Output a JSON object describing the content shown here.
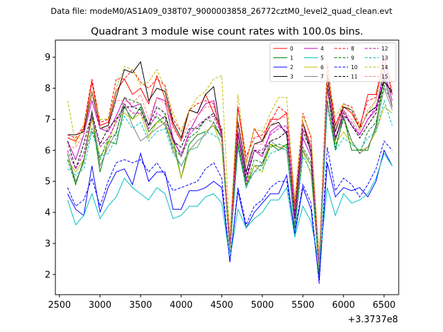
{
  "chart_data": {
    "type": "line",
    "suptitle": "Data file: modeM0/AS1A09_038T07_9000003858_26772cztM0_level2_quad_clean.evt",
    "title": "Quadrant 3 module wise count rates with 100.0s bins.",
    "xlabel": "",
    "ylabel": "",
    "x_offset_label": "+3.3737e8",
    "xlim": [
      2450,
      6680
    ],
    "ylim": [
      1.35,
      9.55
    ],
    "xticks": [
      2500,
      3000,
      3500,
      4000,
      4500,
      5000,
      5500,
      6000,
      6500
    ],
    "yticks": [
      2,
      3,
      4,
      5,
      6,
      7,
      8,
      9
    ],
    "grid": false,
    "legend": {
      "position": "top-right",
      "columns": 4
    },
    "x": [
      2600,
      2700,
      2800,
      2900,
      3000,
      3100,
      3200,
      3300,
      3400,
      3500,
      3600,
      3700,
      3800,
      3900,
      4000,
      4100,
      4200,
      4300,
      4400,
      4500,
      4600,
      4700,
      4800,
      4900,
      5000,
      5100,
      5200,
      5300,
      5400,
      5500,
      5600,
      5700,
      5800,
      5900,
      6000,
      6100,
      6200,
      6300,
      6400,
      6500,
      6600
    ],
    "series": [
      {
        "name": "0",
        "color": "#ff0000",
        "dash": false,
        "values": [
          6.4,
          6.3,
          6.7,
          8.2,
          6.8,
          6.9,
          7.9,
          8.3,
          7.8,
          8.0,
          7.5,
          8.4,
          7.7,
          6.8,
          6.3,
          7.3,
          7.2,
          7.8,
          7.2,
          6.6,
          3.0,
          7.4,
          5.6,
          6.7,
          6.3,
          7.0,
          7.0,
          7.2,
          4.2,
          6.9,
          6.1,
          2.2,
          8.5,
          6.8,
          7.4,
          7.2,
          6.7,
          7.8,
          7.8,
          9.0,
          7.8
        ]
      },
      {
        "name": "1",
        "color": "#008000",
        "dash": false,
        "values": [
          5.9,
          4.9,
          5.7,
          7.1,
          5.3,
          6.3,
          6.2,
          7.4,
          7.0,
          7.4,
          6.6,
          6.9,
          7.1,
          6.4,
          5.1,
          6.2,
          6.5,
          6.6,
          6.8,
          6.4,
          2.7,
          6.1,
          4.8,
          5.5,
          5.5,
          6.2,
          6.0,
          6.2,
          3.5,
          6.0,
          5.5,
          2.0,
          7.6,
          6.0,
          7.1,
          6.0,
          6.0,
          6.0,
          6.8,
          8.4,
          7.4
        ]
      },
      {
        "name": "2",
        "color": "#0000ff",
        "dash": false,
        "values": [
          4.6,
          4.1,
          3.9,
          5.5,
          4.0,
          4.8,
          5.3,
          5.4,
          4.9,
          5.9,
          5.0,
          5.3,
          5.3,
          4.1,
          4.1,
          4.7,
          4.7,
          4.8,
          5.0,
          4.8,
          2.4,
          4.7,
          3.5,
          4.0,
          4.3,
          4.6,
          4.6,
          5.2,
          3.3,
          4.8,
          4.1,
          1.8,
          5.6,
          4.5,
          4.8,
          4.7,
          4.8,
          4.5,
          5.0,
          6.0,
          5.5
        ]
      },
      {
        "name": "3",
        "color": "#000000",
        "dash": false,
        "values": [
          6.5,
          6.5,
          6.6,
          7.9,
          6.7,
          6.8,
          7.7,
          8.6,
          8.5,
          8.85,
          7.6,
          8.0,
          7.9,
          6.9,
          6.4,
          7.3,
          7.2,
          7.8,
          8.05,
          6.4,
          2.9,
          6.9,
          5.3,
          6.2,
          6.3,
          6.8,
          6.9,
          6.5,
          4.0,
          6.9,
          5.9,
          2.4,
          8.4,
          6.6,
          7.4,
          7.3,
          6.7,
          7.2,
          7.4,
          8.2,
          7.9
        ]
      },
      {
        "name": "4",
        "color": "#bf00bf",
        "dash": false,
        "values": [
          6.3,
          5.7,
          6.5,
          7.6,
          6.7,
          6.6,
          7.1,
          7.7,
          7.4,
          7.5,
          6.8,
          7.7,
          7.6,
          6.4,
          5.8,
          6.6,
          7.1,
          7.5,
          7.6,
          6.4,
          2.7,
          6.5,
          5.0,
          6.0,
          5.8,
          6.6,
          6.8,
          6.6,
          3.8,
          6.4,
          5.8,
          2.2,
          8.0,
          6.3,
          7.3,
          6.8,
          6.5,
          7.0,
          7.3,
          8.6,
          7.6
        ]
      },
      {
        "name": "5",
        "color": "#00bfbf",
        "dash": false,
        "values": [
          4.4,
          3.6,
          3.9,
          4.6,
          3.8,
          4.2,
          4.5,
          5.1,
          4.8,
          4.6,
          4.4,
          4.8,
          4.6,
          3.8,
          3.9,
          4.2,
          4.2,
          4.5,
          4.6,
          4.3,
          2.5,
          4.1,
          3.5,
          3.8,
          4.0,
          4.4,
          4.4,
          4.8,
          3.2,
          4.2,
          3.7,
          2.3,
          4.8,
          3.9,
          4.6,
          4.3,
          4.4,
          4.6,
          5.1,
          5.9,
          5.5
        ]
      },
      {
        "name": "6",
        "color": "#bfbf00",
        "dash": false,
        "values": [
          5.7,
          5.3,
          5.7,
          7.0,
          5.8,
          6.2,
          7.0,
          7.2,
          7.0,
          7.2,
          6.4,
          6.9,
          6.9,
          6.2,
          5.1,
          6.0,
          6.1,
          6.6,
          6.8,
          6.1,
          2.7,
          6.2,
          4.9,
          5.5,
          5.3,
          6.2,
          6.1,
          6.1,
          3.5,
          6.0,
          5.2,
          2.2,
          7.5,
          6.2,
          6.6,
          6.2,
          6.0,
          6.1,
          6.6,
          7.4,
          7.2
        ]
      },
      {
        "name": "7",
        "color": "#808080",
        "dash": false,
        "values": [
          5.9,
          5.0,
          5.6,
          7.3,
          5.5,
          6.1,
          6.6,
          7.5,
          6.8,
          6.3,
          6.5,
          6.7,
          6.9,
          6.0,
          5.5,
          6.0,
          6.3,
          6.5,
          6.9,
          6.4,
          2.8,
          6.3,
          4.9,
          5.3,
          5.6,
          6.3,
          6.1,
          6.0,
          3.6,
          6.0,
          5.5,
          2.1,
          7.5,
          6.3,
          7.1,
          6.3,
          5.9,
          6.1,
          6.7,
          8.0,
          7.3
        ]
      },
      {
        "name": "8",
        "color": "#ff0000",
        "dash": true,
        "values": [
          6.5,
          6.4,
          6.8,
          8.3,
          6.9,
          7.0,
          8.3,
          8.3,
          8.6,
          8.2,
          8.0,
          8.3,
          8.1,
          7.0,
          6.6,
          7.3,
          7.5,
          7.6,
          7.5,
          6.5,
          3.0,
          7.4,
          5.8,
          6.4,
          6.5,
          6.9,
          7.4,
          7.2,
          4.3,
          7.2,
          6.4,
          2.4,
          8.8,
          6.8,
          7.5,
          7.4,
          6.8,
          7.6,
          7.7,
          8.8,
          8.2
        ]
      },
      {
        "name": "9",
        "color": "#008000",
        "dash": true,
        "values": [
          5.7,
          4.9,
          5.7,
          6.7,
          5.7,
          6.4,
          6.5,
          7.7,
          7.6,
          7.5,
          6.8,
          7.1,
          6.8,
          6.1,
          5.8,
          6.4,
          6.6,
          7.0,
          6.9,
          6.4,
          2.7,
          6.2,
          4.9,
          5.7,
          5.6,
          6.1,
          6.2,
          6.1,
          3.5,
          6.1,
          5.6,
          2.1,
          8.0,
          6.1,
          7.0,
          6.3,
          5.9,
          6.6,
          6.9,
          8.1,
          7.5
        ]
      },
      {
        "name": "10",
        "color": "#0000ff",
        "dash": true,
        "values": [
          4.8,
          4.2,
          4.4,
          5.1,
          4.2,
          5.0,
          5.6,
          5.7,
          5.6,
          5.7,
          5.3,
          5.6,
          5.2,
          4.7,
          4.8,
          4.9,
          5.0,
          5.4,
          5.6,
          5.1,
          2.4,
          4.8,
          3.6,
          4.2,
          4.4,
          4.8,
          5.0,
          5.0,
          3.4,
          4.9,
          4.3,
          1.7,
          6.1,
          4.7,
          5.1,
          4.9,
          4.5,
          4.9,
          5.4,
          6.3,
          6.0
        ]
      },
      {
        "name": "11",
        "color": "#000000",
        "dash": true,
        "values": [
          6.3,
          5.4,
          6.2,
          7.2,
          6.2,
          6.7,
          7.0,
          7.4,
          7.4,
          7.3,
          6.8,
          7.4,
          7.2,
          6.3,
          6.1,
          6.7,
          6.7,
          7.0,
          7.2,
          6.7,
          2.8,
          6.6,
          5.1,
          6.0,
          5.9,
          6.3,
          6.4,
          6.6,
          3.8,
          6.6,
          6.0,
          2.3,
          8.2,
          6.4,
          7.2,
          6.8,
          6.4,
          6.8,
          7.2,
          8.3,
          7.8
        ]
      },
      {
        "name": "12",
        "color": "#bf00bf",
        "dash": true,
        "values": [
          6.0,
          5.4,
          5.9,
          7.1,
          6.1,
          6.4,
          6.9,
          7.5,
          7.2,
          7.2,
          6.7,
          7.2,
          7.0,
          6.3,
          5.9,
          6.5,
          6.8,
          7.0,
          7.1,
          6.5,
          2.9,
          6.6,
          5.2,
          6.0,
          6.0,
          6.5,
          6.7,
          6.8,
          3.9,
          6.7,
          6.1,
          2.3,
          8.1,
          6.4,
          7.1,
          6.9,
          6.5,
          7.0,
          7.4,
          8.4,
          7.4
        ]
      },
      {
        "name": "13",
        "color": "#00bfbf",
        "dash": true,
        "values": [
          5.4,
          5.2,
          5.4,
          6.6,
          5.8,
          5.9,
          6.4,
          7.1,
          6.7,
          6.9,
          6.3,
          6.6,
          6.7,
          5.9,
          5.5,
          6.0,
          6.1,
          6.6,
          6.5,
          6.3,
          2.7,
          6.1,
          4.8,
          5.3,
          5.4,
          5.9,
          6.0,
          6.1,
          3.4,
          5.8,
          5.3,
          2.2,
          7.4,
          6.0,
          6.4,
          6.2,
          6.0,
          6.4,
          6.6,
          7.6,
          6.8
        ]
      },
      {
        "name": "14",
        "color": "#bfbf00",
        "dash": true,
        "values": [
          7.6,
          6.2,
          6.8,
          7.9,
          7.0,
          7.0,
          8.0,
          8.7,
          8.6,
          8.1,
          8.2,
          8.6,
          8.0,
          7.2,
          6.6,
          7.3,
          7.7,
          7.9,
          8.3,
          8.4,
          3.2,
          7.8,
          5.6,
          6.7,
          6.6,
          7.2,
          7.7,
          7.7,
          4.4,
          7.1,
          6.5,
          2.6,
          8.5,
          7.1,
          7.5,
          7.3,
          6.7,
          7.2,
          7.6,
          8.8,
          8.2
        ]
      },
      {
        "name": "15",
        "color": "#ff7f7f",
        "dash": true,
        "values": [
          6.1,
          6.1,
          6.5,
          7.8,
          6.7,
          6.7,
          7.6,
          7.6,
          7.5,
          7.8,
          7.0,
          7.7,
          7.5,
          6.7,
          6.3,
          6.9,
          7.1,
          7.4,
          7.4,
          6.6,
          2.8,
          7.0,
          5.5,
          6.2,
          6.2,
          6.8,
          7.0,
          7.1,
          4.1,
          6.9,
          6.2,
          2.3,
          8.3,
          6.7,
          7.3,
          7.0,
          6.6,
          7.3,
          7.6,
          9.2,
          7.9
        ]
      }
    ]
  }
}
